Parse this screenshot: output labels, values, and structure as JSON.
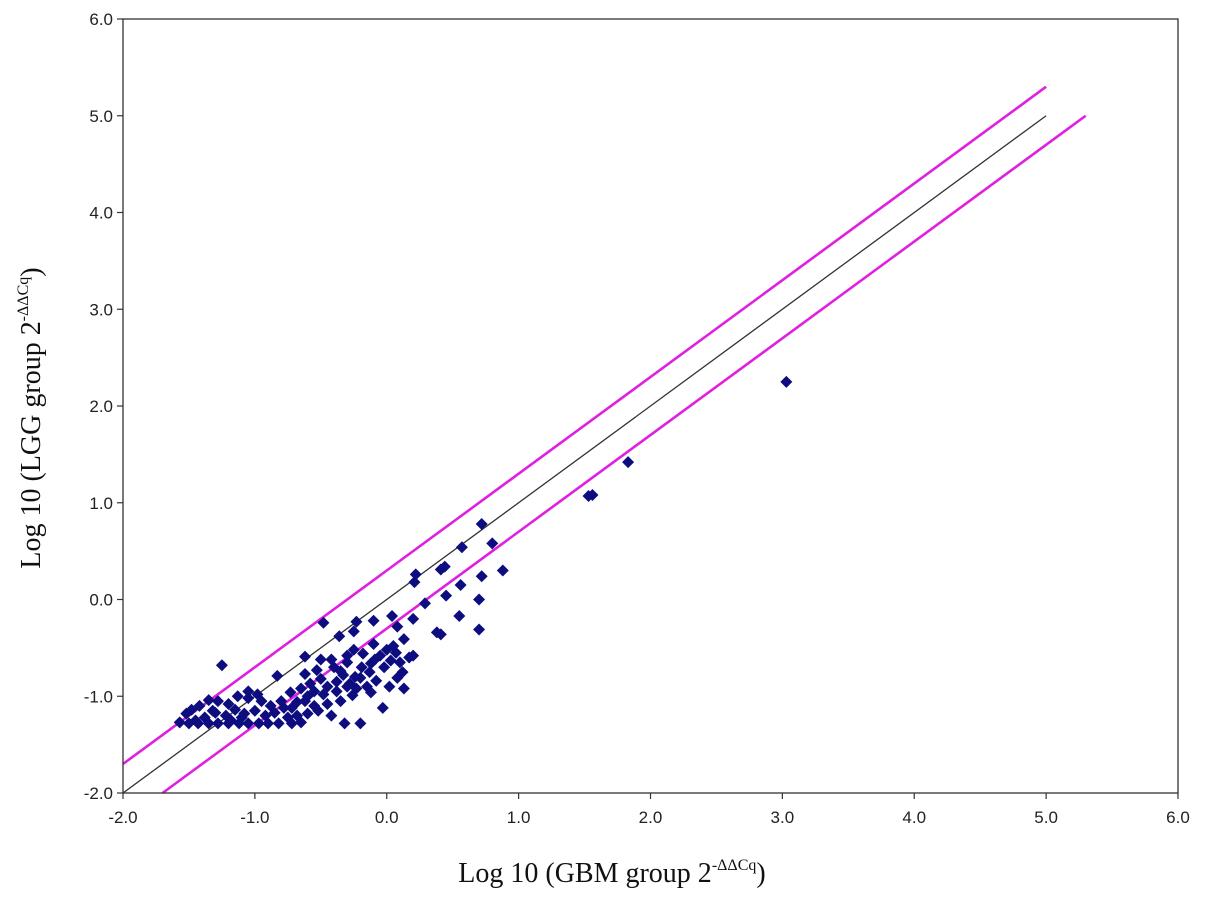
{
  "chart_data": {
    "type": "scatter",
    "title": "",
    "xlabel": {
      "main": "Log 10 (GBM group  2",
      "sup": "-ΔΔCq",
      "close": ")"
    },
    "ylabel": {
      "main": "Log 10 (LGG group  2",
      "sup": "-ΔΔCq",
      "close": ")"
    },
    "xlim": [
      -2.0,
      6.0
    ],
    "ylim": [
      -2.0,
      6.0
    ],
    "xticks": [
      "-2.0",
      "-1.0",
      "0.0",
      "1.0",
      "2.0",
      "3.0",
      "4.0",
      "5.0",
      "6.0"
    ],
    "yticks": [
      "-2.0",
      "-1.0",
      "0.0",
      "1.0",
      "2.0",
      "3.0",
      "4.0",
      "5.0",
      "6.0"
    ],
    "grid": false,
    "legend": "none",
    "colors": {
      "points": "#0d0d80",
      "diagonal": "#333333",
      "bounds": "#e020e0",
      "frame": "#333333"
    },
    "reference_lines": [
      {
        "role": "diagonal",
        "x": [
          -2.0,
          5.0
        ],
        "y": [
          -2.0,
          5.0
        ]
      },
      {
        "role": "upper-bound",
        "x": [
          -2.0,
          5.0
        ],
        "y": [
          -1.7,
          5.3
        ]
      },
      {
        "role": "lower-bound",
        "x": [
          -1.7,
          5.3
        ],
        "y": [
          -2.0,
          5.0
        ]
      }
    ],
    "points": [
      [
        3.03,
        2.25
      ],
      [
        1.83,
        1.42
      ],
      [
        1.53,
        1.07
      ],
      [
        1.56,
        1.08
      ],
      [
        0.72,
        0.78
      ],
      [
        0.8,
        0.58
      ],
      [
        0.57,
        0.54
      ],
      [
        0.88,
        0.3
      ],
      [
        0.72,
        0.24
      ],
      [
        0.41,
        0.31
      ],
      [
        0.44,
        0.34
      ],
      [
        0.22,
        0.26
      ],
      [
        0.21,
        0.18
      ],
      [
        0.56,
        0.15
      ],
      [
        0.7,
        0.0
      ],
      [
        0.45,
        0.04
      ],
      [
        0.29,
        -0.04
      ],
      [
        0.55,
        -0.17
      ],
      [
        0.7,
        -0.31
      ],
      [
        0.38,
        -0.34
      ],
      [
        0.41,
        -0.36
      ],
      [
        0.2,
        -0.2
      ],
      [
        0.04,
        -0.17
      ],
      [
        0.08,
        -0.28
      ],
      [
        -0.48,
        -0.24
      ],
      [
        -0.23,
        -0.23
      ],
      [
        -0.1,
        -0.22
      ],
      [
        -0.25,
        -0.33
      ],
      [
        -0.36,
        -0.38
      ],
      [
        -0.62,
        -0.59
      ],
      [
        -0.5,
        -0.62
      ],
      [
        -0.25,
        -0.52
      ],
      [
        -0.1,
        -0.46
      ],
      [
        0.0,
        -0.52
      ],
      [
        0.05,
        -0.48
      ],
      [
        0.13,
        -0.41
      ],
      [
        -0.05,
        -0.58
      ],
      [
        0.03,
        -0.63
      ],
      [
        0.17,
        -0.6
      ],
      [
        0.2,
        -0.58
      ],
      [
        0.12,
        -0.75
      ],
      [
        -0.02,
        -0.7
      ],
      [
        -0.12,
        -0.66
      ],
      [
        -0.19,
        -0.7
      ],
      [
        -0.3,
        -0.65
      ],
      [
        -0.4,
        -0.7
      ],
      [
        -0.33,
        -0.78
      ],
      [
        -0.2,
        -0.81
      ],
      [
        -0.08,
        -0.84
      ],
      [
        0.08,
        -0.81
      ],
      [
        0.13,
        -0.92
      ],
      [
        -0.15,
        -0.9
      ],
      [
        -0.28,
        -0.87
      ],
      [
        -0.38,
        -0.85
      ],
      [
        -0.45,
        -0.9
      ],
      [
        -0.5,
        -0.82
      ],
      [
        -0.58,
        -0.87
      ],
      [
        -0.65,
        -0.92
      ],
      [
        -0.73,
        -0.96
      ],
      [
        -0.6,
        -1.0
      ],
      [
        -0.48,
        -0.98
      ],
      [
        -0.38,
        -0.95
      ],
      [
        -0.26,
        -0.99
      ],
      [
        -0.35,
        -1.05
      ],
      [
        -0.45,
        -1.08
      ],
      [
        -0.55,
        -1.1
      ],
      [
        -0.68,
        -1.06
      ],
      [
        -0.78,
        -1.12
      ],
      [
        -0.88,
        -1.1
      ],
      [
        -0.95,
        -1.05
      ],
      [
        -1.05,
        -1.02
      ],
      [
        -1.13,
        -1.0
      ],
      [
        -1.2,
        -1.08
      ],
      [
        -1.28,
        -1.05
      ],
      [
        -1.35,
        -1.04
      ],
      [
        -1.42,
        -1.1
      ],
      [
        -1.48,
        -1.14
      ],
      [
        -1.52,
        -1.18
      ],
      [
        -1.45,
        -1.25
      ],
      [
        -1.38,
        -1.22
      ],
      [
        -1.3,
        -1.17
      ],
      [
        -1.22,
        -1.2
      ],
      [
        -1.15,
        -1.14
      ],
      [
        -1.08,
        -1.18
      ],
      [
        -1.0,
        -1.15
      ],
      [
        -0.92,
        -1.2
      ],
      [
        -0.85,
        -1.17
      ],
      [
        -0.75,
        -1.22
      ],
      [
        -0.68,
        -1.2
      ],
      [
        -0.6,
        -1.18
      ],
      [
        -0.52,
        -1.15
      ],
      [
        -0.42,
        -1.2
      ],
      [
        -0.32,
        -1.28
      ],
      [
        -0.2,
        -1.28
      ],
      [
        -0.03,
        -1.12
      ],
      [
        -1.57,
        -1.27
      ],
      [
        -1.5,
        -1.28
      ],
      [
        -1.43,
        -1.28
      ],
      [
        -1.35,
        -1.28
      ],
      [
        -1.28,
        -1.28
      ],
      [
        -1.2,
        -1.28
      ],
      [
        -1.12,
        -1.28
      ],
      [
        -1.05,
        -1.28
      ],
      [
        -0.97,
        -1.28
      ],
      [
        -0.9,
        -1.28
      ],
      [
        -0.82,
        -1.28
      ],
      [
        -0.72,
        -1.28
      ],
      [
        -0.65,
        -1.27
      ],
      [
        -1.25,
        -0.68
      ],
      [
        -0.98,
        -0.98
      ],
      [
        -1.05,
        -0.95
      ],
      [
        -0.83,
        -0.79
      ],
      [
        -0.62,
        -0.77
      ],
      [
        -0.53,
        -0.73
      ],
      [
        -0.42,
        -0.62
      ],
      [
        -0.3,
        -0.58
      ],
      [
        -0.18,
        -0.56
      ],
      [
        -0.09,
        -0.62
      ],
      [
        0.07,
        -0.55
      ],
      [
        -0.13,
        -0.75
      ],
      [
        -0.24,
        -0.8
      ],
      [
        -0.35,
        -0.74
      ],
      [
        -0.12,
        -0.96
      ],
      [
        -0.23,
        -0.92
      ],
      [
        -0.55,
        -0.95
      ],
      [
        -0.62,
        -1.05
      ],
      [
        -0.72,
        -1.12
      ],
      [
        -0.8,
        -1.05
      ],
      [
        -1.1,
        -1.22
      ],
      [
        -1.18,
        -1.25
      ],
      [
        -1.32,
        -1.15
      ],
      [
        -0.3,
        -0.9
      ],
      [
        0.02,
        -0.9
      ],
      [
        0.1,
        -0.65
      ]
    ]
  }
}
